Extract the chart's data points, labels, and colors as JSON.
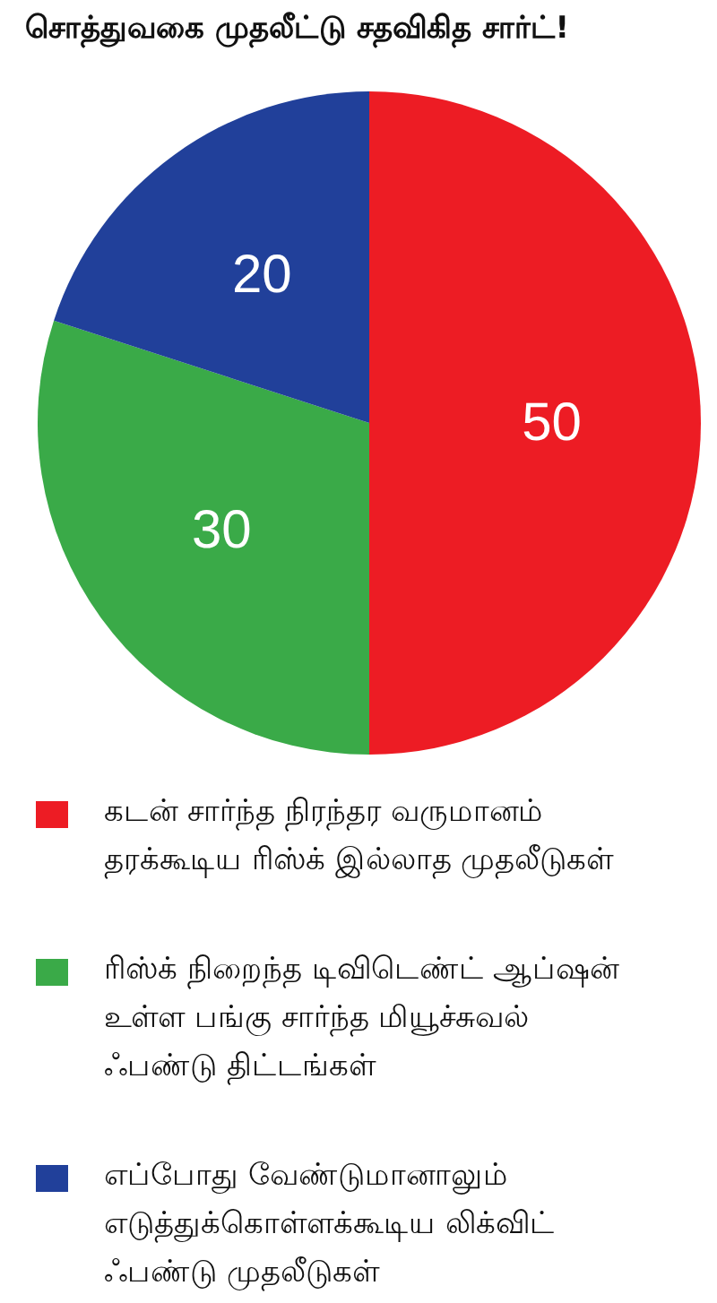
{
  "chart_data": {
    "type": "pie",
    "title": "சொத்துவகை முதலீட்டு சதவிகித சார்ட்!",
    "categories": [
      "கடன் சார்ந்த நிரந்தர வருமானம் தரக்கூடிய ரிஸ்க் இல்லாத முதலீடுகள்",
      "ரிஸ்க் நிறைந்த டிவிடெண்ட் ஆப்ஷன் உள்ள பங்கு சார்ந்த மியூச்சுவல் ஃபண்டு திட்டங்கள்",
      "எப்போது வேண்டுமானாலும் எடுத்துக்கொள்ளக்கூடிய லிக்விட் ஃபண்டு முதலீடுகள்"
    ],
    "values": [
      50,
      30,
      20
    ],
    "colors": [
      "#ed1c24",
      "#3aaa48",
      "#21409a"
    ],
    "data_labels": true,
    "legend": "bottom"
  }
}
